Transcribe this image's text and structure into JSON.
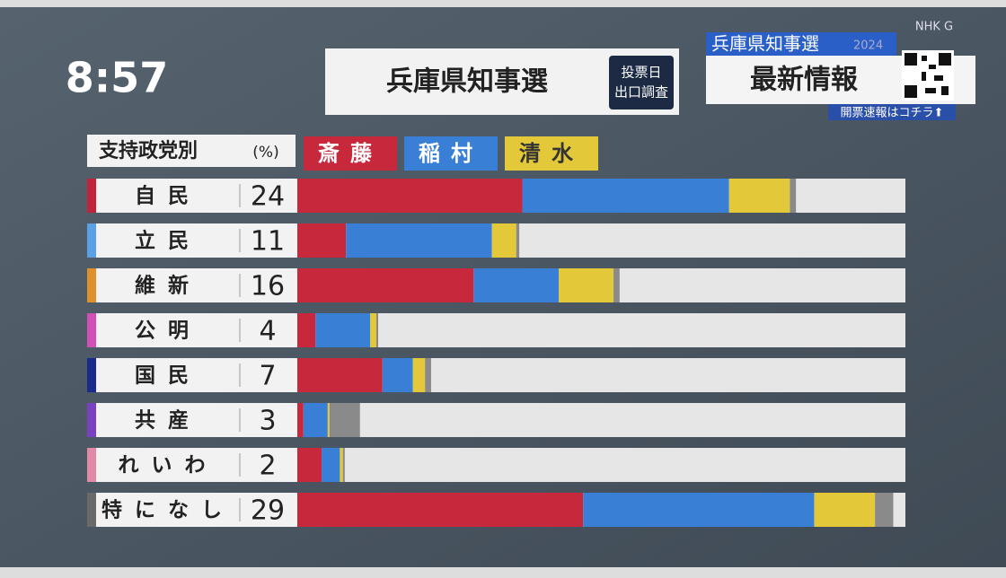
{
  "clock": "8:57",
  "header": {
    "title": "兵庫県知事選",
    "badge": [
      "投票日",
      "出口調査"
    ]
  },
  "corner": {
    "title": "兵庫県知事選",
    "year": "2024",
    "headline": "最新情報",
    "link": "開票速報はコチラ⬆",
    "channel": "NHK G"
  },
  "chart_data": {
    "type": "bar",
    "orientation": "horizontal",
    "stacked": true,
    "title": "支持政党別",
    "unit": "(%)",
    "categories": [
      "自民",
      "立民",
      "維新",
      "公明",
      "国民",
      "共産",
      "れいわ",
      "特になし"
    ],
    "category_values": [
      24,
      11,
      16,
      4,
      7,
      3,
      2,
      29
    ],
    "category_colors": [
      "#c0243a",
      "#5aa0e6",
      "#e0902a",
      "#d050b8",
      "#1a2a8a",
      "#7a40c0",
      "#e08aa8",
      "#6a6a6a"
    ],
    "xlim": [
      0,
      100
    ],
    "series": [
      {
        "name": "斎藤",
        "color": "#c8283c",
        "values": [
          37,
          8,
          29,
          3,
          14,
          1,
          4,
          47
        ]
      },
      {
        "name": "稲村",
        "color": "#3a7fd6",
        "values": [
          34,
          24,
          14,
          9,
          5,
          4,
          3,
          38
        ]
      },
      {
        "name": "清水",
        "color": "#e3c83a",
        "values": [
          10,
          4,
          9,
          1,
          2,
          0.3,
          0.5,
          10
        ]
      },
      {
        "color": "#8a8a8a",
        "values": [
          1,
          0.5,
          1,
          0.3,
          1,
          5,
          0.3,
          3
        ]
      }
    ]
  }
}
